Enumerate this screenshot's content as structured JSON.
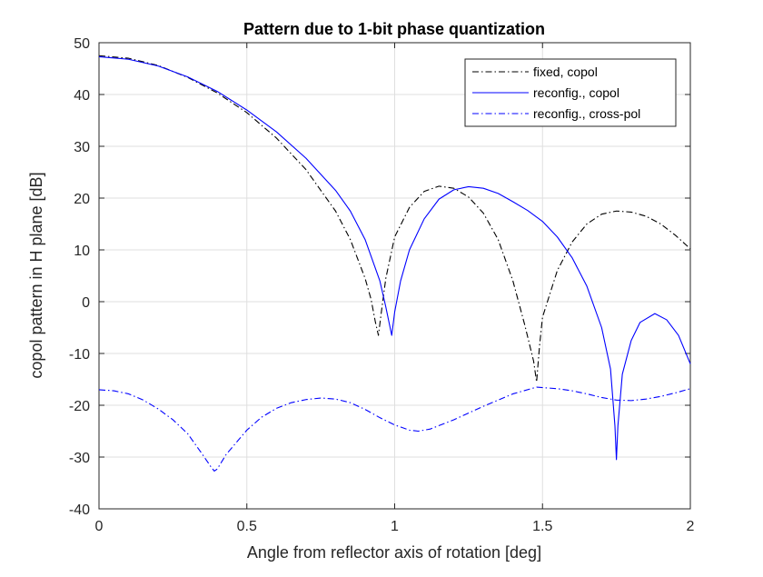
{
  "chart_data": {
    "type": "line",
    "title": "Pattern due to 1-bit phase quantization",
    "xlabel": "Angle from reflector axis of rotation [deg]",
    "ylabel": "copol pattern in H plane [dB]",
    "xlim": [
      0,
      2
    ],
    "ylim": [
      -40,
      50
    ],
    "xticks": [
      0,
      0.5,
      1,
      1.5,
      2
    ],
    "xtick_labels": [
      "0",
      "0.5",
      "1",
      "1.5",
      "2"
    ],
    "yticks": [
      -40,
      -30,
      -20,
      -10,
      0,
      10,
      20,
      30,
      40,
      50
    ],
    "ytick_labels": [
      "-40",
      "-30",
      "-20",
      "-10",
      "0",
      "10",
      "20",
      "30",
      "40",
      "50"
    ],
    "grid": true,
    "legend_position": "top-right",
    "series": [
      {
        "name": "fixed, copol",
        "color": "#000000",
        "style": "dashdot",
        "points": [
          [
            0,
            47.5
          ],
          [
            0.1,
            47.0
          ],
          [
            0.2,
            45.6
          ],
          [
            0.3,
            43.3
          ],
          [
            0.4,
            40.3
          ],
          [
            0.5,
            36.5
          ],
          [
            0.6,
            31.6
          ],
          [
            0.7,
            25.5
          ],
          [
            0.8,
            17.5
          ],
          [
            0.85,
            12.0
          ],
          [
            0.9,
            4.5
          ],
          [
            0.92,
            0.5
          ],
          [
            0.935,
            -4.0
          ],
          [
            0.945,
            -6.5
          ],
          [
            0.955,
            -2.0
          ],
          [
            0.97,
            4.5
          ],
          [
            1.0,
            12.5
          ],
          [
            1.05,
            18.2
          ],
          [
            1.1,
            21.3
          ],
          [
            1.15,
            22.3
          ],
          [
            1.2,
            21.9
          ],
          [
            1.25,
            20.2
          ],
          [
            1.3,
            17.1
          ],
          [
            1.35,
            12.0
          ],
          [
            1.4,
            4.0
          ],
          [
            1.44,
            -4.5
          ],
          [
            1.47,
            -11.5
          ],
          [
            1.48,
            -15.5
          ],
          [
            1.49,
            -8.5
          ],
          [
            1.5,
            -3.0
          ],
          [
            1.55,
            6.0
          ],
          [
            1.6,
            11.5
          ],
          [
            1.65,
            15.0
          ],
          [
            1.7,
            16.9
          ],
          [
            1.75,
            17.5
          ],
          [
            1.8,
            17.3
          ],
          [
            1.85,
            16.5
          ],
          [
            1.9,
            15.0
          ],
          [
            1.95,
            12.8
          ],
          [
            2.0,
            10.2
          ]
        ]
      },
      {
        "name": "reconfig., copol",
        "color": "#0000ff",
        "style": "solid",
        "points": [
          [
            0,
            47.3
          ],
          [
            0.1,
            46.8
          ],
          [
            0.2,
            45.5
          ],
          [
            0.3,
            43.4
          ],
          [
            0.4,
            40.6
          ],
          [
            0.5,
            37.0
          ],
          [
            0.6,
            32.8
          ],
          [
            0.7,
            27.7
          ],
          [
            0.8,
            21.5
          ],
          [
            0.85,
            17.5
          ],
          [
            0.9,
            12.0
          ],
          [
            0.95,
            4.0
          ],
          [
            0.97,
            -1.0
          ],
          [
            0.99,
            -6.5
          ],
          [
            1.0,
            -2.0
          ],
          [
            1.02,
            4.0
          ],
          [
            1.05,
            10.0
          ],
          [
            1.1,
            16.0
          ],
          [
            1.15,
            19.8
          ],
          [
            1.2,
            21.6
          ],
          [
            1.25,
            22.2
          ],
          [
            1.3,
            21.9
          ],
          [
            1.35,
            20.9
          ],
          [
            1.4,
            19.3
          ],
          [
            1.45,
            17.6
          ],
          [
            1.5,
            15.5
          ],
          [
            1.55,
            12.5
          ],
          [
            1.6,
            8.5
          ],
          [
            1.65,
            3.0
          ],
          [
            1.7,
            -5.0
          ],
          [
            1.73,
            -13.0
          ],
          [
            1.745,
            -24.0
          ],
          [
            1.75,
            -30.5
          ],
          [
            1.755,
            -24.0
          ],
          [
            1.77,
            -14.0
          ],
          [
            1.8,
            -7.5
          ],
          [
            1.83,
            -4.0
          ],
          [
            1.88,
            -2.3
          ],
          [
            1.92,
            -3.5
          ],
          [
            1.96,
            -6.5
          ],
          [
            2.0,
            -12.0
          ]
        ]
      },
      {
        "name": "reconfig., cross-pol",
        "color": "#0000ff",
        "style": "dashdot",
        "points": [
          [
            0,
            -17.0
          ],
          [
            0.05,
            -17.2
          ],
          [
            0.1,
            -17.8
          ],
          [
            0.15,
            -19.0
          ],
          [
            0.2,
            -20.7
          ],
          [
            0.25,
            -22.8
          ],
          [
            0.3,
            -25.5
          ],
          [
            0.35,
            -29.5
          ],
          [
            0.38,
            -32.0
          ],
          [
            0.39,
            -32.7
          ],
          [
            0.4,
            -32.3
          ],
          [
            0.43,
            -29.5
          ],
          [
            0.5,
            -24.8
          ],
          [
            0.55,
            -22.3
          ],
          [
            0.6,
            -20.6
          ],
          [
            0.65,
            -19.5
          ],
          [
            0.7,
            -18.9
          ],
          [
            0.75,
            -18.6
          ],
          [
            0.8,
            -18.8
          ],
          [
            0.85,
            -19.5
          ],
          [
            0.9,
            -20.8
          ],
          [
            0.95,
            -22.4
          ],
          [
            1.0,
            -23.8
          ],
          [
            1.05,
            -24.8
          ],
          [
            1.08,
            -25.0
          ],
          [
            1.12,
            -24.6
          ],
          [
            1.2,
            -22.8
          ],
          [
            1.3,
            -20.2
          ],
          [
            1.4,
            -17.8
          ],
          [
            1.48,
            -16.5
          ],
          [
            1.55,
            -16.8
          ],
          [
            1.6,
            -17.2
          ],
          [
            1.65,
            -17.8
          ],
          [
            1.7,
            -18.5
          ],
          [
            1.75,
            -19.0
          ],
          [
            1.8,
            -19.1
          ],
          [
            1.85,
            -18.8
          ],
          [
            1.9,
            -18.3
          ],
          [
            1.95,
            -17.6
          ],
          [
            2.0,
            -16.8
          ]
        ]
      }
    ]
  }
}
